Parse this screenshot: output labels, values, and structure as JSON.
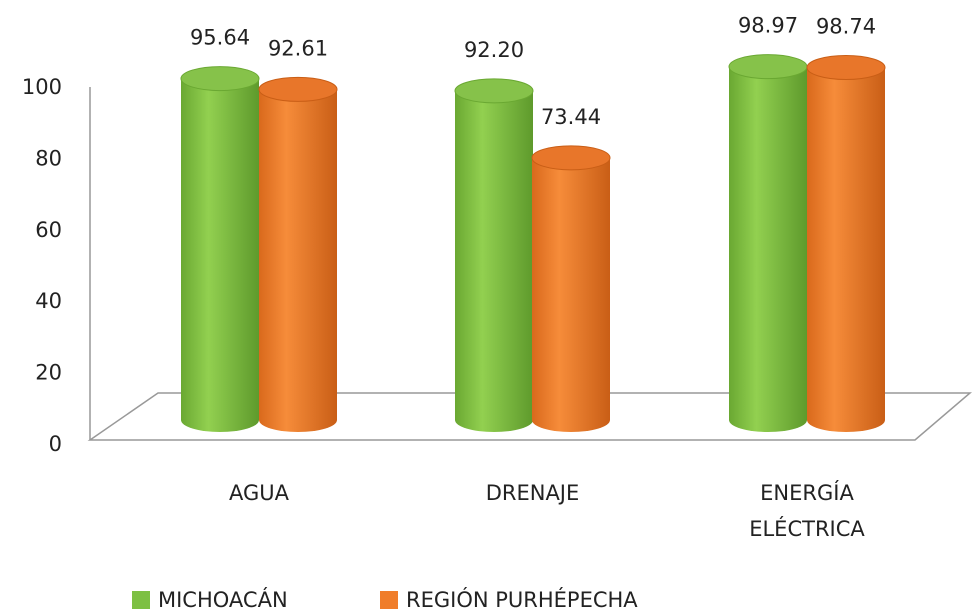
{
  "chart_data": {
    "type": "bar3d",
    "categories": [
      "AGUA",
      "DRENAJE",
      "ENERGÍA ELÉCTRICA"
    ],
    "series": [
      {
        "name": "MICHOACÁN",
        "color": "#7dc043",
        "values": [
          95.64,
          92.2,
          98.97
        ],
        "value_labels": [
          "95.64",
          "92.20",
          "98.97"
        ]
      },
      {
        "name": "REGIÓN PURHÉPECHA",
        "color": "#f07d2a",
        "values": [
          92.61,
          73.44,
          98.74
        ],
        "value_labels": [
          "92.61",
          "73.44",
          "98.74"
        ]
      }
    ],
    "ylim": [
      0,
      100
    ],
    "yticks": [
      0,
      20,
      40,
      60,
      80,
      100
    ],
    "legend": "bottom"
  }
}
